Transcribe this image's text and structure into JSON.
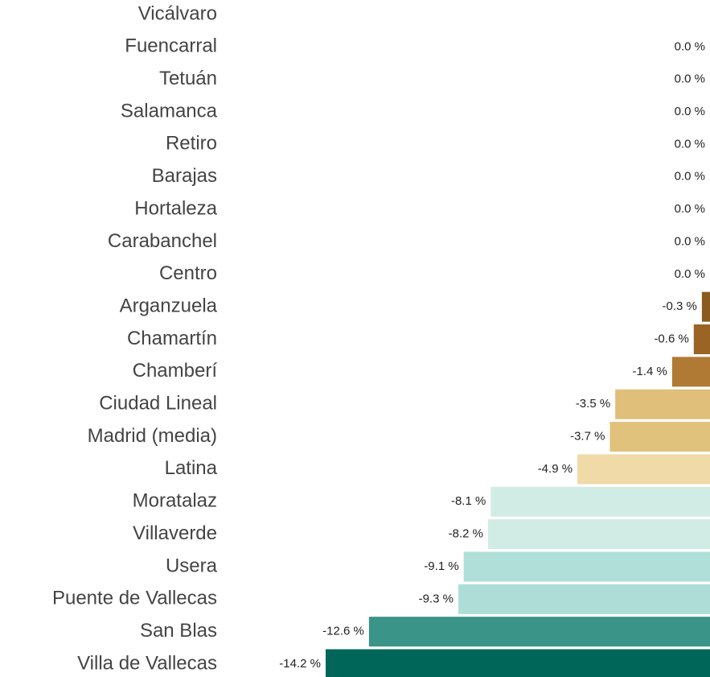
{
  "chart_data": {
    "type": "bar",
    "orientation": "horizontal",
    "categories": [
      "Vicálvaro",
      "Fuencarral",
      "Tetuán",
      "Salamanca",
      "Retiro",
      "Barajas",
      "Hortaleza",
      "Carabanchel",
      "Centro",
      "Arganzuela",
      "Chamartín",
      "Chamberí",
      "Ciudad Lineal",
      "Madrid (media)",
      "Latina ",
      "Moratalaz",
      "Villaverde",
      "Usera",
      "Puente de Vallecas",
      "San Blas",
      "Villa de Vallecas"
    ],
    "values": [
      null,
      0.0,
      0.0,
      0.0,
      0.0,
      0.0,
      0.0,
      0.0,
      0.0,
      -0.3,
      -0.6,
      -1.4,
      -3.5,
      -3.7,
      -4.9,
      -8.1,
      -8.2,
      -9.1,
      -9.3,
      -12.6,
      -14.2
    ],
    "value_labels": [
      null,
      "0.0 %",
      "0.0 %",
      "0.0 %",
      "0.0 %",
      "0.0 %",
      "0.0 %",
      "0.0 %",
      "0.0 %",
      "-0.3 %",
      "-0.6 %",
      "-1.4 %",
      "-3.5 %",
      "-3.7 %",
      "-4.9 %",
      "-8.1 %",
      "-8.2 %",
      "-9.1 %",
      "-9.3 %",
      "-12.6 %",
      "-14.2 %"
    ],
    "colors": [
      null,
      null,
      null,
      null,
      null,
      null,
      null,
      null,
      null,
      "#8b5a1e",
      "#9a6424",
      "#b07a35",
      "#dfbf7a",
      "#e0c27c",
      "#efdaa8",
      "#d1ece4",
      "#d1ece4",
      "#b0dfd9",
      "#aeddd7",
      "#3a9488",
      "#00665a"
    ],
    "xlim": [
      -14.2,
      0
    ]
  }
}
